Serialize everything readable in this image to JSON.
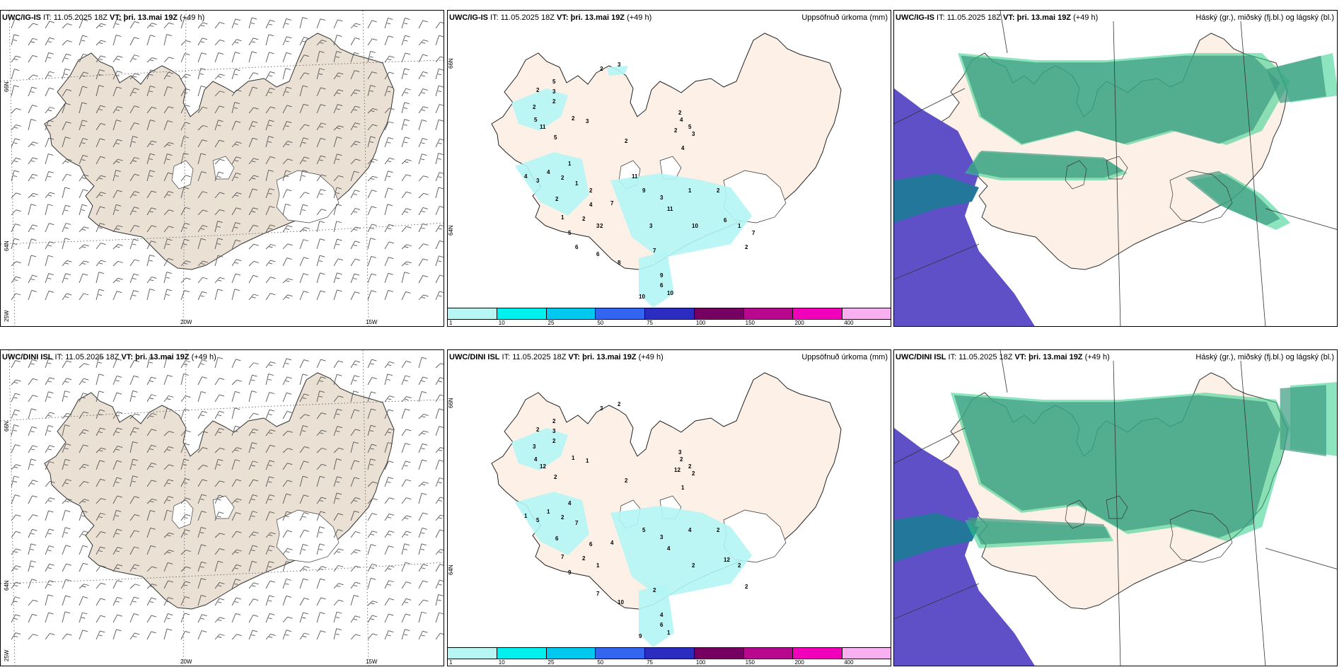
{
  "rows": [
    {
      "model_label": "UWC/IG-IS",
      "init_prefix": "IT:",
      "init_value": "11.05.2025 18Z",
      "valid_prefix": "VT:",
      "valid_value": "þri. 13.mai 19Z",
      "lead": "(+49 h)",
      "precip_title": "Uppsöfnuð úrkoma (mm)",
      "cloud_title": "Háský (gr.), miðský (fj.bl.) og lágský (bl.)",
      "precip_labels": [
        "2",
        "3",
        "2",
        "3",
        "5",
        "2",
        "2",
        "5",
        "11",
        "5",
        "2",
        "3",
        "4",
        "3",
        "4",
        "2",
        "1",
        "1",
        "2",
        "1",
        "4",
        "2",
        "5",
        "3",
        "6",
        "8",
        "7",
        "9",
        "3",
        "11",
        "1",
        "10",
        "7",
        "9",
        "6",
        "10",
        "10",
        "2",
        "2",
        "4",
        "5",
        "2",
        "3",
        "4",
        "2",
        "6",
        "1",
        "2",
        "7",
        "2",
        "6",
        "11",
        "2",
        "3"
      ]
    },
    {
      "model_label": "UWC/DINI ISL",
      "init_prefix": "IT:",
      "init_value": "11.05.2025 18Z",
      "valid_prefix": "VT:",
      "valid_value": "þri. 13.mai 19Z",
      "lead": "(+49 h)",
      "precip_title": "Uppsöfnuð úrkoma (mm)",
      "cloud_title": "Háský (gr.), miðský (fj.bl.) og lágský (bl.)",
      "precip_labels": [
        "3",
        "2",
        "2",
        "3",
        "2",
        "2",
        "3",
        "4",
        "12",
        "2",
        "1",
        "1",
        "1",
        "5",
        "1",
        "2",
        "4",
        "7",
        "6",
        "7",
        "6",
        "2",
        "9",
        "1",
        "7",
        "10",
        "4",
        "5",
        "3",
        "4",
        "4",
        "2",
        "2",
        "4",
        "6",
        "1",
        "9",
        "2",
        "12",
        "2",
        "2",
        "3",
        "2",
        "1",
        "2",
        "12",
        "2",
        "2"
      ]
    }
  ],
  "grid_labels": {
    "lat_66": "66N",
    "lat_64": "64N",
    "lon_25": "25W",
    "lon_20": "20W",
    "lon_15": "15W"
  },
  "colorbar": {
    "ticks": [
      "1",
      "10",
      "25",
      "50",
      "75",
      "100",
      "150",
      "200",
      "400"
    ],
    "colors": [
      "#b8f6f4",
      "#00f0f0",
      "#00c8ee",
      "#3465f0",
      "#2a2dc0",
      "#760062",
      "#b8088e",
      "#f000b8",
      "#f8b0f0"
    ]
  },
  "colors": {
    "land_wind": "#ebe0d4",
    "land_precip": "#fdf0e6",
    "precip_fill": "#b4f5f5",
    "cloud_teal": "#3c9a80",
    "cloud_green": "#2ecf8a",
    "cloud_blue": "#6050c8",
    "cloud_white": "#ffffff"
  }
}
